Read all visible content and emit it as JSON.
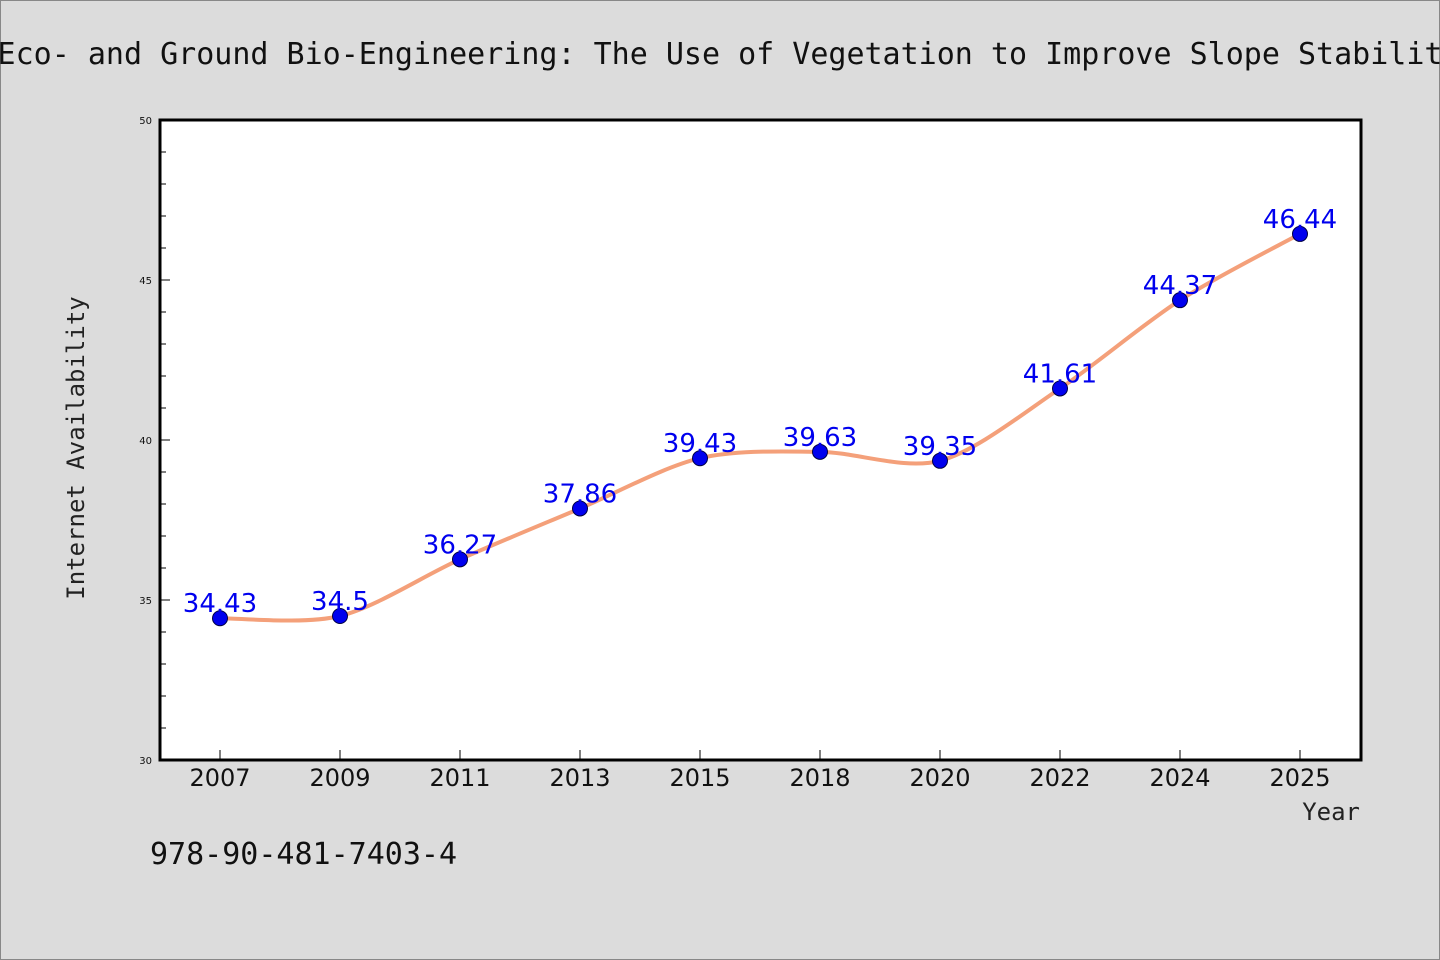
{
  "chart_data": {
    "type": "line",
    "title": "Eco- and Ground Bio-Engineering: The Use of Vegetation to Improve Slope Stabilit",
    "xlabel": "Year",
    "ylabel": "Internet Availability",
    "categories": [
      "2007",
      "2009",
      "2011",
      "2013",
      "2015",
      "2018",
      "2020",
      "2022",
      "2024",
      "2025"
    ],
    "series": [
      {
        "values": [
          34.43,
          34.5,
          36.27,
          37.86,
          39.43,
          39.63,
          39.35,
          41.61,
          44.37,
          46.44
        ],
        "data_labels": [
          "34.43",
          "34.5",
          "36.27",
          "37.86",
          "39.43",
          "39.63",
          "39.35",
          "41.61",
          "44.37",
          "46.44"
        ],
        "line_color": "#f4a07a",
        "marker_color": "#0000ee"
      }
    ],
    "ylim": [
      30,
      50
    ],
    "y_ticks": [
      "30",
      "35",
      "40",
      "45",
      "50"
    ],
    "grid": false,
    "legend": "none"
  },
  "footer": {
    "isbn": "978-90-481-7403-4"
  },
  "colors": {
    "background": "#dcdcdc",
    "plot_background": "#ffffff",
    "line": "#f4a07a",
    "marker": "#0000ee",
    "data_label": "#0000ee"
  }
}
